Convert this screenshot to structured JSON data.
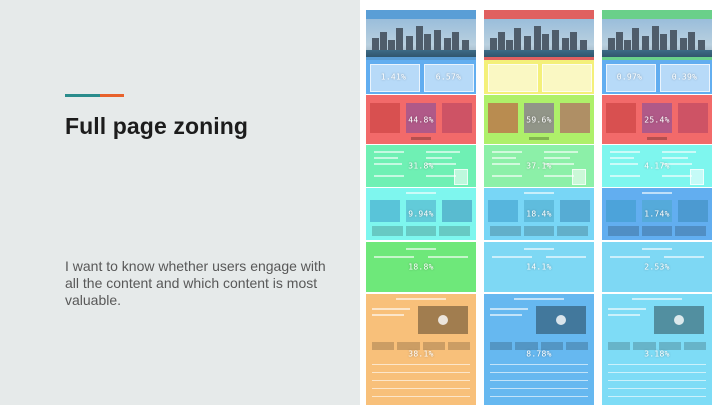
{
  "slide": {
    "title": "Full page zoning",
    "body": "I want to know whether users engage with all the content and which content is most valuable.",
    "accent_colors": [
      "#2a8c8c",
      "#e8622c"
    ]
  },
  "heatmap": {
    "columns": [
      {
        "zones": [
          {
            "kind": "hero",
            "color": "#5a9ed6"
          },
          {
            "kind": "split",
            "values": [
              "1.41%",
              "6.57%"
            ],
            "color": "#62aef0"
          },
          {
            "kind": "cards",
            "value": "44.8%",
            "color": "#f26a6a"
          },
          {
            "kind": "text",
            "value": "31.8%",
            "color": "#6ff0b4"
          },
          {
            "kind": "gallery",
            "value": "9.94%",
            "color": "#7ef6ee"
          },
          {
            "kind": "plain",
            "value": "18.8%",
            "color": "#6ee87a"
          },
          {
            "kind": "footer",
            "value": "38.1%",
            "color": "#f8c07a"
          }
        ]
      },
      {
        "zones": [
          {
            "kind": "hero",
            "color": "#e06060"
          },
          {
            "kind": "split",
            "values": [
              "",
              ""
            ],
            "color": "#f4f07a"
          },
          {
            "kind": "cards",
            "value": "59.6%",
            "color": "#aef06a"
          },
          {
            "kind": "text",
            "value": "37.1%",
            "color": "#8cf0a8"
          },
          {
            "kind": "gallery",
            "value": "18.4%",
            "color": "#78d6f6"
          },
          {
            "kind": "plain",
            "value": "14.1%",
            "color": "#7ed8f4"
          },
          {
            "kind": "footer",
            "value": "8.78%",
            "color": "#66b8f0"
          }
        ]
      },
      {
        "zones": [
          {
            "kind": "hero",
            "color": "#6ad08a"
          },
          {
            "kind": "split",
            "values": [
              "0.97%",
              "0.39%"
            ],
            "color": "#62aef0"
          },
          {
            "kind": "cards",
            "value": "25.4%",
            "color": "#f26a6a"
          },
          {
            "kind": "text",
            "value": "4.17%",
            "color": "#7ef6ee"
          },
          {
            "kind": "gallery",
            "value": "1.74%",
            "color": "#62aef0"
          },
          {
            "kind": "plain",
            "value": "2.53%",
            "color": "#7ed8f4"
          },
          {
            "kind": "footer",
            "value": "3.18%",
            "color": "#7edcf6"
          }
        ]
      }
    ]
  }
}
